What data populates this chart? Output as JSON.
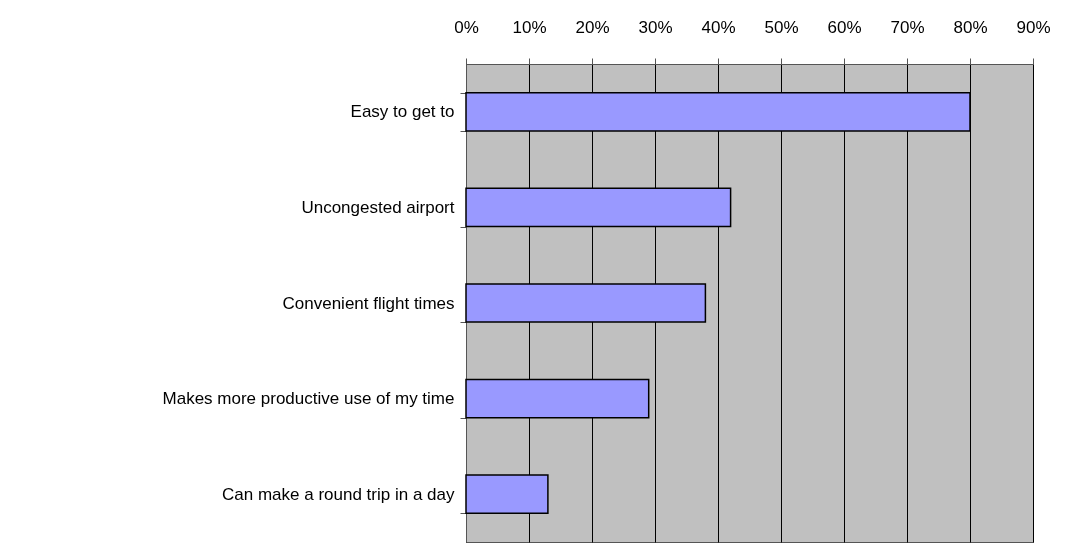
{
  "chart_data": {
    "type": "bar",
    "orientation": "horizontal",
    "categories": [
      "Easy to get to",
      "Uncongested airport",
      "Convenient flight times",
      "Makes more productive use of my time",
      "Can make a round trip in a day"
    ],
    "values": [
      80,
      42,
      38,
      29,
      13
    ],
    "color": "#9999ff",
    "xlim": [
      0,
      90
    ],
    "xticks": [
      {
        "value": 0,
        "label": "0%"
      },
      {
        "value": 10,
        "label": "10%"
      },
      {
        "value": 20,
        "label": "20%"
      },
      {
        "value": 30,
        "label": "30%"
      },
      {
        "value": 40,
        "label": "40%"
      },
      {
        "value": 50,
        "label": "50%"
      },
      {
        "value": 60,
        "label": "60%"
      },
      {
        "value": 70,
        "label": "70%"
      },
      {
        "value": 80,
        "label": "80%"
      },
      {
        "value": 90,
        "label": "90%"
      }
    ],
    "grid": "x"
  }
}
